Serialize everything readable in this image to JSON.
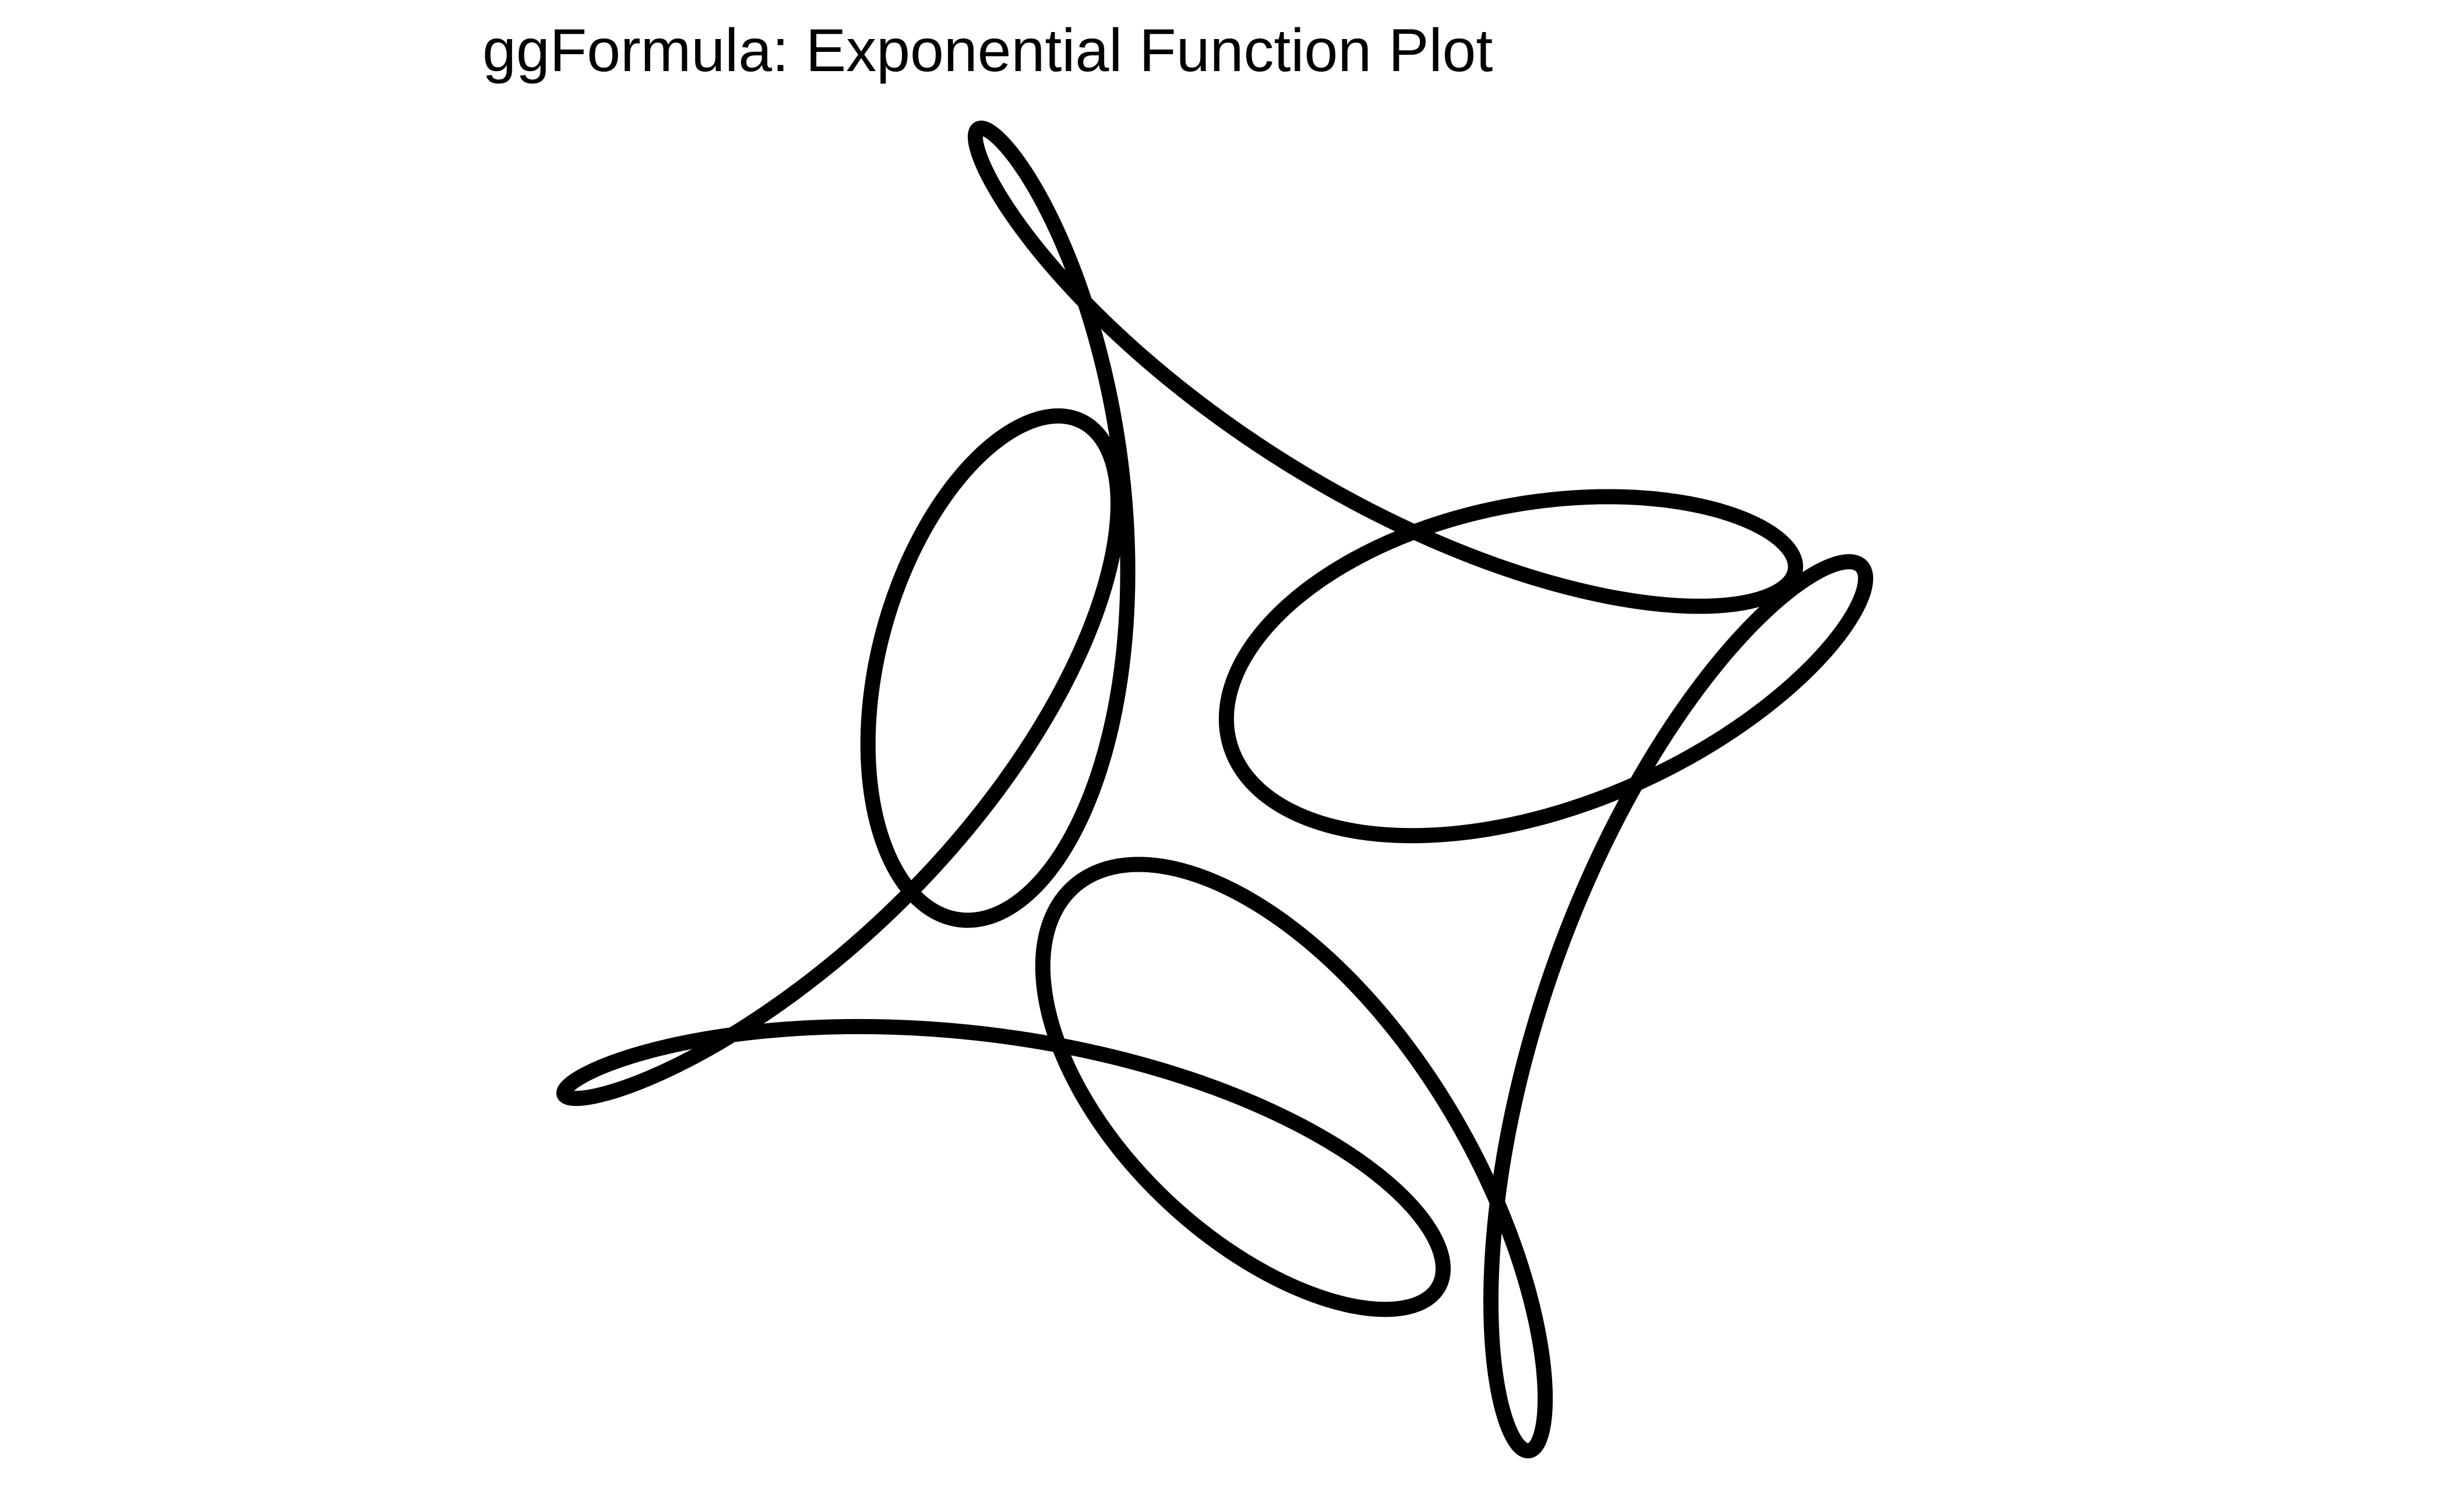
{
  "chart_data": {
    "type": "line",
    "title": "ggFormula: Exponential Function Plot",
    "xlabel": "",
    "ylabel": "",
    "axes_visible": false,
    "grid": false,
    "legend": "none",
    "line_color": "#000000",
    "background": "#ffffff",
    "curve": {
      "kind": "parametric",
      "description_of_shape": "closed five-fold symmetric star-like curve with loops",
      "points_count": 2400
    }
  }
}
